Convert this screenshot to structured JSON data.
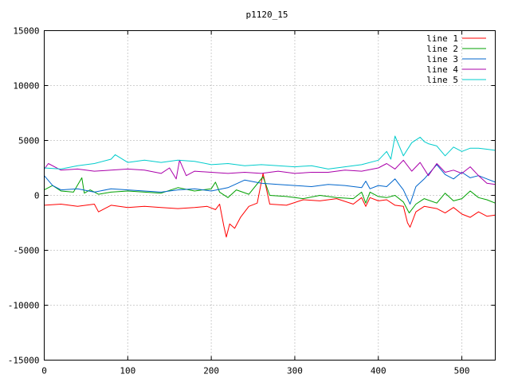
{
  "chart_data": {
    "type": "line",
    "title": "p1120_15",
    "xlabel": "",
    "ylabel": "",
    "xlim": [
      0,
      540
    ],
    "ylim": [
      -15000,
      15000
    ],
    "xticks": [
      0,
      100,
      200,
      300,
      400,
      500
    ],
    "yticks": [
      -15000,
      -10000,
      -5000,
      0,
      5000,
      10000,
      15000
    ],
    "grid": true,
    "legend_position": "top-right",
    "series": [
      {
        "name": "line 1",
        "color": "#ff0000",
        "x": [
          0,
          20,
          40,
          60,
          65,
          80,
          100,
          120,
          140,
          160,
          180,
          195,
          205,
          210,
          215,
          218,
          222,
          228,
          235,
          245,
          255,
          262,
          270,
          290,
          310,
          330,
          350,
          370,
          380,
          385,
          390,
          400,
          410,
          420,
          430,
          435,
          438,
          445,
          455,
          470,
          480,
          490,
          500,
          510,
          520,
          530,
          540
        ],
        "y": [
          -900,
          -800,
          -1000,
          -800,
          -1500,
          -900,
          -1100,
          -1000,
          -1100,
          -1200,
          -1100,
          -1000,
          -1300,
          -800,
          -2800,
          -3800,
          -2600,
          -3000,
          -2000,
          -1000,
          -700,
          2000,
          -800,
          -900,
          -400,
          -500,
          -300,
          -800,
          -200,
          -1000,
          -200,
          -500,
          -400,
          -900,
          -1000,
          -2500,
          -2900,
          -1500,
          -1000,
          -1200,
          -1600,
          -1100,
          -1700,
          -2000,
          -1500,
          -1900,
          -1800
        ]
      },
      {
        "name": "line 2",
        "color": "#00a000",
        "x": [
          0,
          10,
          20,
          35,
          45,
          48,
          55,
          65,
          80,
          100,
          120,
          140,
          160,
          180,
          200,
          205,
          210,
          220,
          230,
          245,
          262,
          270,
          290,
          310,
          330,
          350,
          370,
          380,
          385,
          390,
          400,
          410,
          420,
          430,
          437,
          445,
          455,
          470,
          480,
          490,
          500,
          510,
          520,
          530,
          540
        ],
        "y": [
          500,
          900,
          400,
          300,
          1600,
          200,
          500,
          100,
          300,
          400,
          300,
          200,
          700,
          400,
          600,
          1200,
          300,
          -200,
          500,
          100,
          1700,
          0,
          -100,
          -300,
          0,
          -200,
          -300,
          300,
          -700,
          300,
          -100,
          -200,
          0,
          -600,
          -1600,
          -800,
          -300,
          -700,
          200,
          -500,
          -300,
          400,
          -200,
          -400,
          -700
        ]
      },
      {
        "name": "line 3",
        "color": "#0066cc",
        "x": [
          0,
          10,
          20,
          40,
          60,
          80,
          100,
          120,
          140,
          160,
          180,
          200,
          220,
          240,
          260,
          280,
          300,
          320,
          340,
          360,
          380,
          385,
          390,
          400,
          410,
          420,
          430,
          438,
          445,
          455,
          470,
          480,
          490,
          500,
          510,
          520,
          530,
          540
        ],
        "y": [
          1800,
          900,
          500,
          600,
          300,
          600,
          500,
          400,
          300,
          500,
          600,
          400,
          700,
          1400,
          1100,
          1000,
          900,
          800,
          1000,
          900,
          700,
          1300,
          600,
          900,
          800,
          1500,
          500,
          -800,
          800,
          1500,
          2800,
          1900,
          1500,
          2100,
          1600,
          1800,
          1500,
          1200
        ]
      },
      {
        "name": "line 4",
        "color": "#aa00aa",
        "x": [
          0,
          5,
          20,
          40,
          60,
          80,
          100,
          120,
          140,
          150,
          158,
          162,
          170,
          180,
          200,
          220,
          240,
          260,
          280,
          300,
          320,
          340,
          360,
          380,
          400,
          410,
          420,
          430,
          440,
          450,
          460,
          470,
          480,
          490,
          500,
          510,
          520,
          530,
          540
        ],
        "y": [
          2400,
          2900,
          2300,
          2400,
          2200,
          2300,
          2400,
          2300,
          2000,
          2500,
          1500,
          3200,
          1800,
          2200,
          2100,
          2000,
          2100,
          2000,
          2200,
          2000,
          2100,
          2100,
          2300,
          2200,
          2500,
          2900,
          2400,
          3200,
          2200,
          3000,
          1800,
          2900,
          2100,
          2300,
          2000,
          2600,
          1800,
          1100,
          1000
        ]
      },
      {
        "name": "line 5",
        "color": "#00cccc",
        "x": [
          0,
          20,
          40,
          60,
          80,
          85,
          100,
          120,
          140,
          160,
          180,
          200,
          220,
          240,
          260,
          280,
          300,
          320,
          340,
          360,
          380,
          400,
          410,
          415,
          420,
          430,
          440,
          450,
          455,
          460,
          470,
          480,
          490,
          500,
          510,
          520,
          530,
          540
        ],
        "y": [
          2500,
          2400,
          2700,
          2900,
          3300,
          3700,
          3000,
          3200,
          3000,
          3200,
          3100,
          2800,
          2900,
          2700,
          2800,
          2700,
          2600,
          2700,
          2400,
          2600,
          2800,
          3200,
          4000,
          3300,
          5400,
          3600,
          4800,
          5300,
          4900,
          4700,
          4500,
          3600,
          4400,
          4000,
          4300,
          4300,
          4200,
          4100
        ]
      }
    ]
  }
}
